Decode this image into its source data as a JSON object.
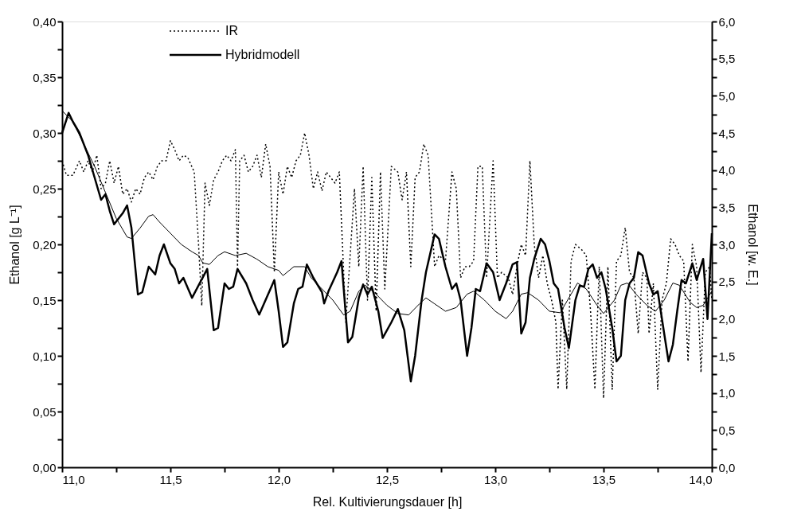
{
  "chart_data": {
    "type": "line",
    "xlabel": "Rel. Kultivierungsdauer [h]",
    "ylabel": "Ethanol [g L⁻¹]",
    "y2label": "Ethanol [w. E.]",
    "xlim": [
      11.0,
      14.0
    ],
    "ylim": [
      0,
      0.4
    ],
    "y2lim": [
      0,
      6
    ],
    "xticks": [
      {
        "value": 11.0,
        "label": "11,0"
      },
      {
        "value": 11.25,
        "label": null
      },
      {
        "value": 11.5,
        "label": "11,5"
      },
      {
        "value": 11.75,
        "label": null
      },
      {
        "value": 12.0,
        "label": "12,0"
      },
      {
        "value": 12.25,
        "label": null
      },
      {
        "value": 12.5,
        "label": "12,5"
      },
      {
        "value": 12.75,
        "label": null
      },
      {
        "value": 13.0,
        "label": "13,0"
      },
      {
        "value": 13.25,
        "label": null
      },
      {
        "value": 13.5,
        "label": "13,5"
      },
      {
        "value": 13.75,
        "label": null
      },
      {
        "value": 14.0,
        "label": "14,0"
      }
    ],
    "yticks": [
      {
        "value": 0,
        "label": "0,00"
      },
      {
        "value": 0.025,
        "label": null
      },
      {
        "value": 0.05,
        "label": "0,05"
      },
      {
        "value": 0.075,
        "label": null
      },
      {
        "value": 0.1,
        "label": "0,10"
      },
      {
        "value": 0.125,
        "label": null
      },
      {
        "value": 0.15,
        "label": "0,15"
      },
      {
        "value": 0.175,
        "label": null
      },
      {
        "value": 0.2,
        "label": "0,20"
      },
      {
        "value": 0.225,
        "label": null
      },
      {
        "value": 0.25,
        "label": "0,25"
      },
      {
        "value": 0.275,
        "label": null
      },
      {
        "value": 0.3,
        "label": "0,30"
      },
      {
        "value": 0.325,
        "label": null
      },
      {
        "value": 0.35,
        "label": "0,35"
      },
      {
        "value": 0.375,
        "label": null
      },
      {
        "value": 0.4,
        "label": "0,40"
      }
    ],
    "y2ticks": [
      {
        "value": 0,
        "label": "0,0"
      },
      {
        "value": 0.25,
        "label": null
      },
      {
        "value": 0.5,
        "label": "0,5"
      },
      {
        "value": 0.75,
        "label": null
      },
      {
        "value": 1,
        "label": "1,0"
      },
      {
        "value": 1.25,
        "label": null
      },
      {
        "value": 1.5,
        "label": "1,5"
      },
      {
        "value": 1.75,
        "label": null
      },
      {
        "value": 2,
        "label": "2,0"
      },
      {
        "value": 2.25,
        "label": null
      },
      {
        "value": 2.5,
        "label": "2,5"
      },
      {
        "value": 2.75,
        "label": null
      },
      {
        "value": 3,
        "label": "3,0"
      },
      {
        "value": 3.25,
        "label": null
      },
      {
        "value": 3.5,
        "label": "3,5"
      },
      {
        "value": 3.75,
        "label": null
      },
      {
        "value": 4,
        "label": "4,0"
      },
      {
        "value": 4.25,
        "label": null
      },
      {
        "value": 4.5,
        "label": "4,5"
      },
      {
        "value": 4.75,
        "label": null
      },
      {
        "value": 5,
        "label": "5,0"
      },
      {
        "value": 5.25,
        "label": null
      },
      {
        "value": 5.5,
        "label": "5,5"
      },
      {
        "value": 5.75,
        "label": null
      },
      {
        "value": 6,
        "label": "6,0"
      }
    ],
    "grid": false,
    "legend": "top left",
    "marker": "none",
    "series": [
      {
        "name": "IR",
        "color": "#000000",
        "line_style": "dotted",
        "x": [
          11.0,
          11.02,
          11.05,
          11.08,
          11.1,
          11.12,
          11.14,
          11.16,
          11.18,
          11.2,
          11.22,
          11.24,
          11.26,
          11.28,
          11.3,
          11.32,
          11.34,
          11.36,
          11.38,
          11.4,
          11.42,
          11.44,
          11.46,
          11.48,
          11.5,
          11.52,
          11.54,
          11.56,
          11.58,
          11.61,
          11.63,
          11.645,
          11.66,
          11.68,
          11.7,
          11.72,
          11.74,
          11.76,
          11.78,
          11.8,
          11.81,
          11.82,
          11.84,
          11.86,
          11.88,
          11.9,
          11.92,
          11.94,
          11.96,
          11.98,
          12.0,
          12.02,
          12.04,
          12.06,
          12.08,
          12.1,
          12.12,
          12.14,
          12.16,
          12.18,
          12.2,
          12.22,
          12.24,
          12.26,
          12.28,
          12.31,
          12.33,
          12.35,
          12.37,
          12.39,
          12.41,
          12.43,
          12.45,
          12.47,
          12.49,
          12.52,
          12.55,
          12.57,
          12.59,
          12.61,
          12.63,
          12.65,
          12.67,
          12.69,
          12.72,
          12.74,
          12.77,
          12.8,
          12.82,
          12.84,
          12.86,
          12.88,
          12.9,
          12.92,
          12.94,
          12.96,
          12.99,
          13.01,
          13.03,
          13.06,
          13.08,
          13.1,
          13.12,
          13.14,
          13.16,
          13.18,
          13.2,
          13.22,
          13.24,
          13.26,
          13.28,
          13.29,
          13.31,
          13.33,
          13.35,
          13.37,
          13.4,
          13.42,
          13.44,
          13.46,
          13.48,
          13.5,
          13.52,
          13.54,
          13.56,
          13.58,
          13.6,
          13.62,
          13.64,
          13.66,
          13.68,
          13.7,
          13.71,
          13.73,
          13.75,
          13.77,
          13.79,
          13.81,
          13.83,
          13.85,
          13.87,
          13.89,
          13.91,
          13.93,
          13.95,
          13.97,
          13.99,
          14.0
        ],
        "values": [
          0.275,
          0.262,
          0.262,
          0.275,
          0.265,
          0.275,
          0.265,
          0.28,
          0.25,
          0.255,
          0.275,
          0.255,
          0.27,
          0.245,
          0.25,
          0.238,
          0.25,
          0.245,
          0.26,
          0.265,
          0.258,
          0.27,
          0.275,
          0.275,
          0.293,
          0.285,
          0.275,
          0.28,
          0.278,
          0.265,
          0.2,
          0.145,
          0.255,
          0.235,
          0.258,
          0.265,
          0.275,
          0.28,
          0.275,
          0.285,
          0.18,
          0.275,
          0.28,
          0.265,
          0.27,
          0.28,
          0.26,
          0.29,
          0.27,
          0.175,
          0.265,
          0.245,
          0.27,
          0.26,
          0.275,
          0.28,
          0.3,
          0.28,
          0.25,
          0.265,
          0.248,
          0.265,
          0.26,
          0.255,
          0.265,
          0.13,
          0.19,
          0.25,
          0.18,
          0.27,
          0.15,
          0.26,
          0.14,
          0.265,
          0.16,
          0.27,
          0.265,
          0.24,
          0.265,
          0.18,
          0.26,
          0.265,
          0.29,
          0.28,
          0.18,
          0.19,
          0.185,
          0.265,
          0.25,
          0.17,
          0.18,
          0.18,
          0.185,
          0.27,
          0.27,
          0.17,
          0.275,
          0.17,
          0.175,
          0.17,
          0.155,
          0.18,
          0.2,
          0.19,
          0.275,
          0.2,
          0.17,
          0.19,
          0.165,
          0.15,
          0.13,
          0.07,
          0.15,
          0.07,
          0.185,
          0.2,
          0.195,
          0.19,
          0.14,
          0.07,
          0.18,
          0.062,
          0.18,
          0.07,
          0.185,
          0.19,
          0.215,
          0.175,
          0.17,
          0.12,
          0.175,
          0.17,
          0.12,
          0.165,
          0.07,
          0.15,
          0.165,
          0.205,
          0.2,
          0.19,
          0.185,
          0.095,
          0.2,
          0.18,
          0.085,
          0.175,
          0.18,
          0.15
        ]
      },
      {
        "name": "Hybridmodell",
        "color": "#000000",
        "line_style": "solid",
        "x": [
          11.0,
          11.03,
          11.05,
          11.08,
          11.12,
          11.15,
          11.18,
          11.2,
          11.22,
          11.24,
          11.28,
          11.3,
          11.32,
          11.35,
          11.37,
          11.4,
          11.43,
          11.45,
          11.47,
          11.5,
          11.52,
          11.54,
          11.56,
          11.6,
          11.67,
          11.7,
          11.72,
          11.75,
          11.77,
          11.79,
          11.81,
          11.85,
          11.88,
          11.91,
          11.98,
          12.0,
          12.02,
          12.04,
          12.07,
          12.09,
          12.11,
          12.13,
          12.16,
          12.2,
          12.21,
          12.23,
          12.27,
          12.29,
          12.32,
          12.34,
          12.37,
          12.39,
          12.41,
          12.43,
          12.46,
          12.48,
          12.52,
          12.55,
          12.58,
          12.61,
          12.63,
          12.66,
          12.68,
          12.72,
          12.74,
          12.77,
          12.8,
          12.82,
          12.84,
          12.87,
          12.89,
          12.91,
          12.93,
          12.96,
          12.99,
          13.02,
          13.05,
          13.08,
          13.1,
          13.12,
          13.14,
          13.16,
          13.18,
          13.21,
          13.23,
          13.25,
          13.27,
          13.29,
          13.32,
          13.34,
          13.37,
          13.39,
          13.41,
          13.43,
          13.45,
          13.47,
          13.49,
          13.51,
          13.54,
          13.56,
          13.58,
          13.6,
          13.62,
          13.64,
          13.66,
          13.68,
          13.71,
          13.73,
          13.75,
          13.78,
          13.8,
          13.82,
          13.84,
          13.86,
          13.88,
          13.91,
          13.93,
          13.96,
          13.98,
          14.0
        ],
        "values": [
          0.3,
          0.318,
          0.31,
          0.3,
          0.28,
          0.26,
          0.24,
          0.245,
          0.23,
          0.218,
          0.228,
          0.235,
          0.215,
          0.155,
          0.157,
          0.18,
          0.173,
          0.19,
          0.2,
          0.183,
          0.178,
          0.165,
          0.17,
          0.152,
          0.178,
          0.123,
          0.125,
          0.165,
          0.16,
          0.162,
          0.178,
          0.165,
          0.15,
          0.137,
          0.168,
          0.14,
          0.108,
          0.112,
          0.147,
          0.16,
          0.162,
          0.182,
          0.17,
          0.157,
          0.147,
          0.158,
          0.175,
          0.185,
          0.112,
          0.117,
          0.152,
          0.164,
          0.155,
          0.162,
          0.14,
          0.116,
          0.13,
          0.142,
          0.123,
          0.077,
          0.1,
          0.15,
          0.175,
          0.209,
          0.205,
          0.18,
          0.16,
          0.165,
          0.15,
          0.1,
          0.125,
          0.16,
          0.158,
          0.183,
          0.175,
          0.15,
          0.165,
          0.182,
          0.184,
          0.12,
          0.13,
          0.17,
          0.187,
          0.205,
          0.2,
          0.185,
          0.165,
          0.16,
          0.125,
          0.107,
          0.15,
          0.163,
          0.162,
          0.178,
          0.182,
          0.17,
          0.175,
          0.16,
          0.125,
          0.095,
          0.1,
          0.15,
          0.165,
          0.17,
          0.193,
          0.19,
          0.165,
          0.155,
          0.158,
          0.12,
          0.095,
          0.11,
          0.14,
          0.168,
          0.165,
          0.183,
          0.168,
          0.187,
          0.133,
          0.21
        ]
      },
      {
        "color": "#000000",
        "line_style": "solid",
        "axis": "y2",
        "x": [
          11.0,
          11.05,
          11.1,
          11.15,
          11.2,
          11.25,
          11.3,
          11.32,
          11.36,
          11.4,
          11.42,
          11.45,
          11.5,
          11.55,
          11.6,
          11.63,
          11.65,
          11.68,
          11.72,
          11.75,
          11.8,
          11.85,
          11.9,
          11.95,
          12.0,
          12.02,
          12.07,
          12.12,
          12.15,
          12.2,
          12.25,
          12.3,
          12.33,
          12.37,
          12.4,
          12.45,
          12.5,
          12.55,
          12.6,
          12.65,
          12.68,
          12.72,
          12.77,
          12.82,
          12.87,
          12.9,
          12.95,
          13.0,
          13.05,
          13.08,
          13.12,
          13.15,
          13.2,
          13.25,
          13.3,
          13.35,
          13.38,
          13.42,
          13.47,
          13.5,
          13.55,
          13.58,
          13.61,
          13.65,
          13.7,
          13.74,
          13.78,
          13.82,
          13.85,
          13.9,
          13.93,
          13.96,
          14.0
        ],
        "values": [
          4.8,
          4.65,
          4.35,
          4.05,
          3.7,
          3.35,
          3.1,
          3.08,
          3.22,
          3.38,
          3.4,
          3.3,
          3.15,
          3.0,
          2.9,
          2.85,
          2.75,
          2.73,
          2.85,
          2.9,
          2.85,
          2.88,
          2.8,
          2.7,
          2.65,
          2.58,
          2.7,
          2.7,
          2.55,
          2.4,
          2.25,
          2.05,
          2.1,
          2.37,
          2.45,
          2.33,
          2.18,
          2.07,
          2.05,
          2.2,
          2.28,
          2.2,
          2.1,
          2.15,
          2.33,
          2.37,
          2.25,
          2.1,
          2.0,
          2.1,
          2.33,
          2.35,
          2.25,
          2.1,
          2.08,
          2.33,
          2.48,
          2.4,
          2.18,
          2.07,
          2.25,
          2.45,
          2.48,
          2.33,
          2.18,
          2.1,
          2.25,
          2.48,
          2.45,
          2.22,
          2.15,
          2.18,
          2.37
        ]
      }
    ]
  }
}
